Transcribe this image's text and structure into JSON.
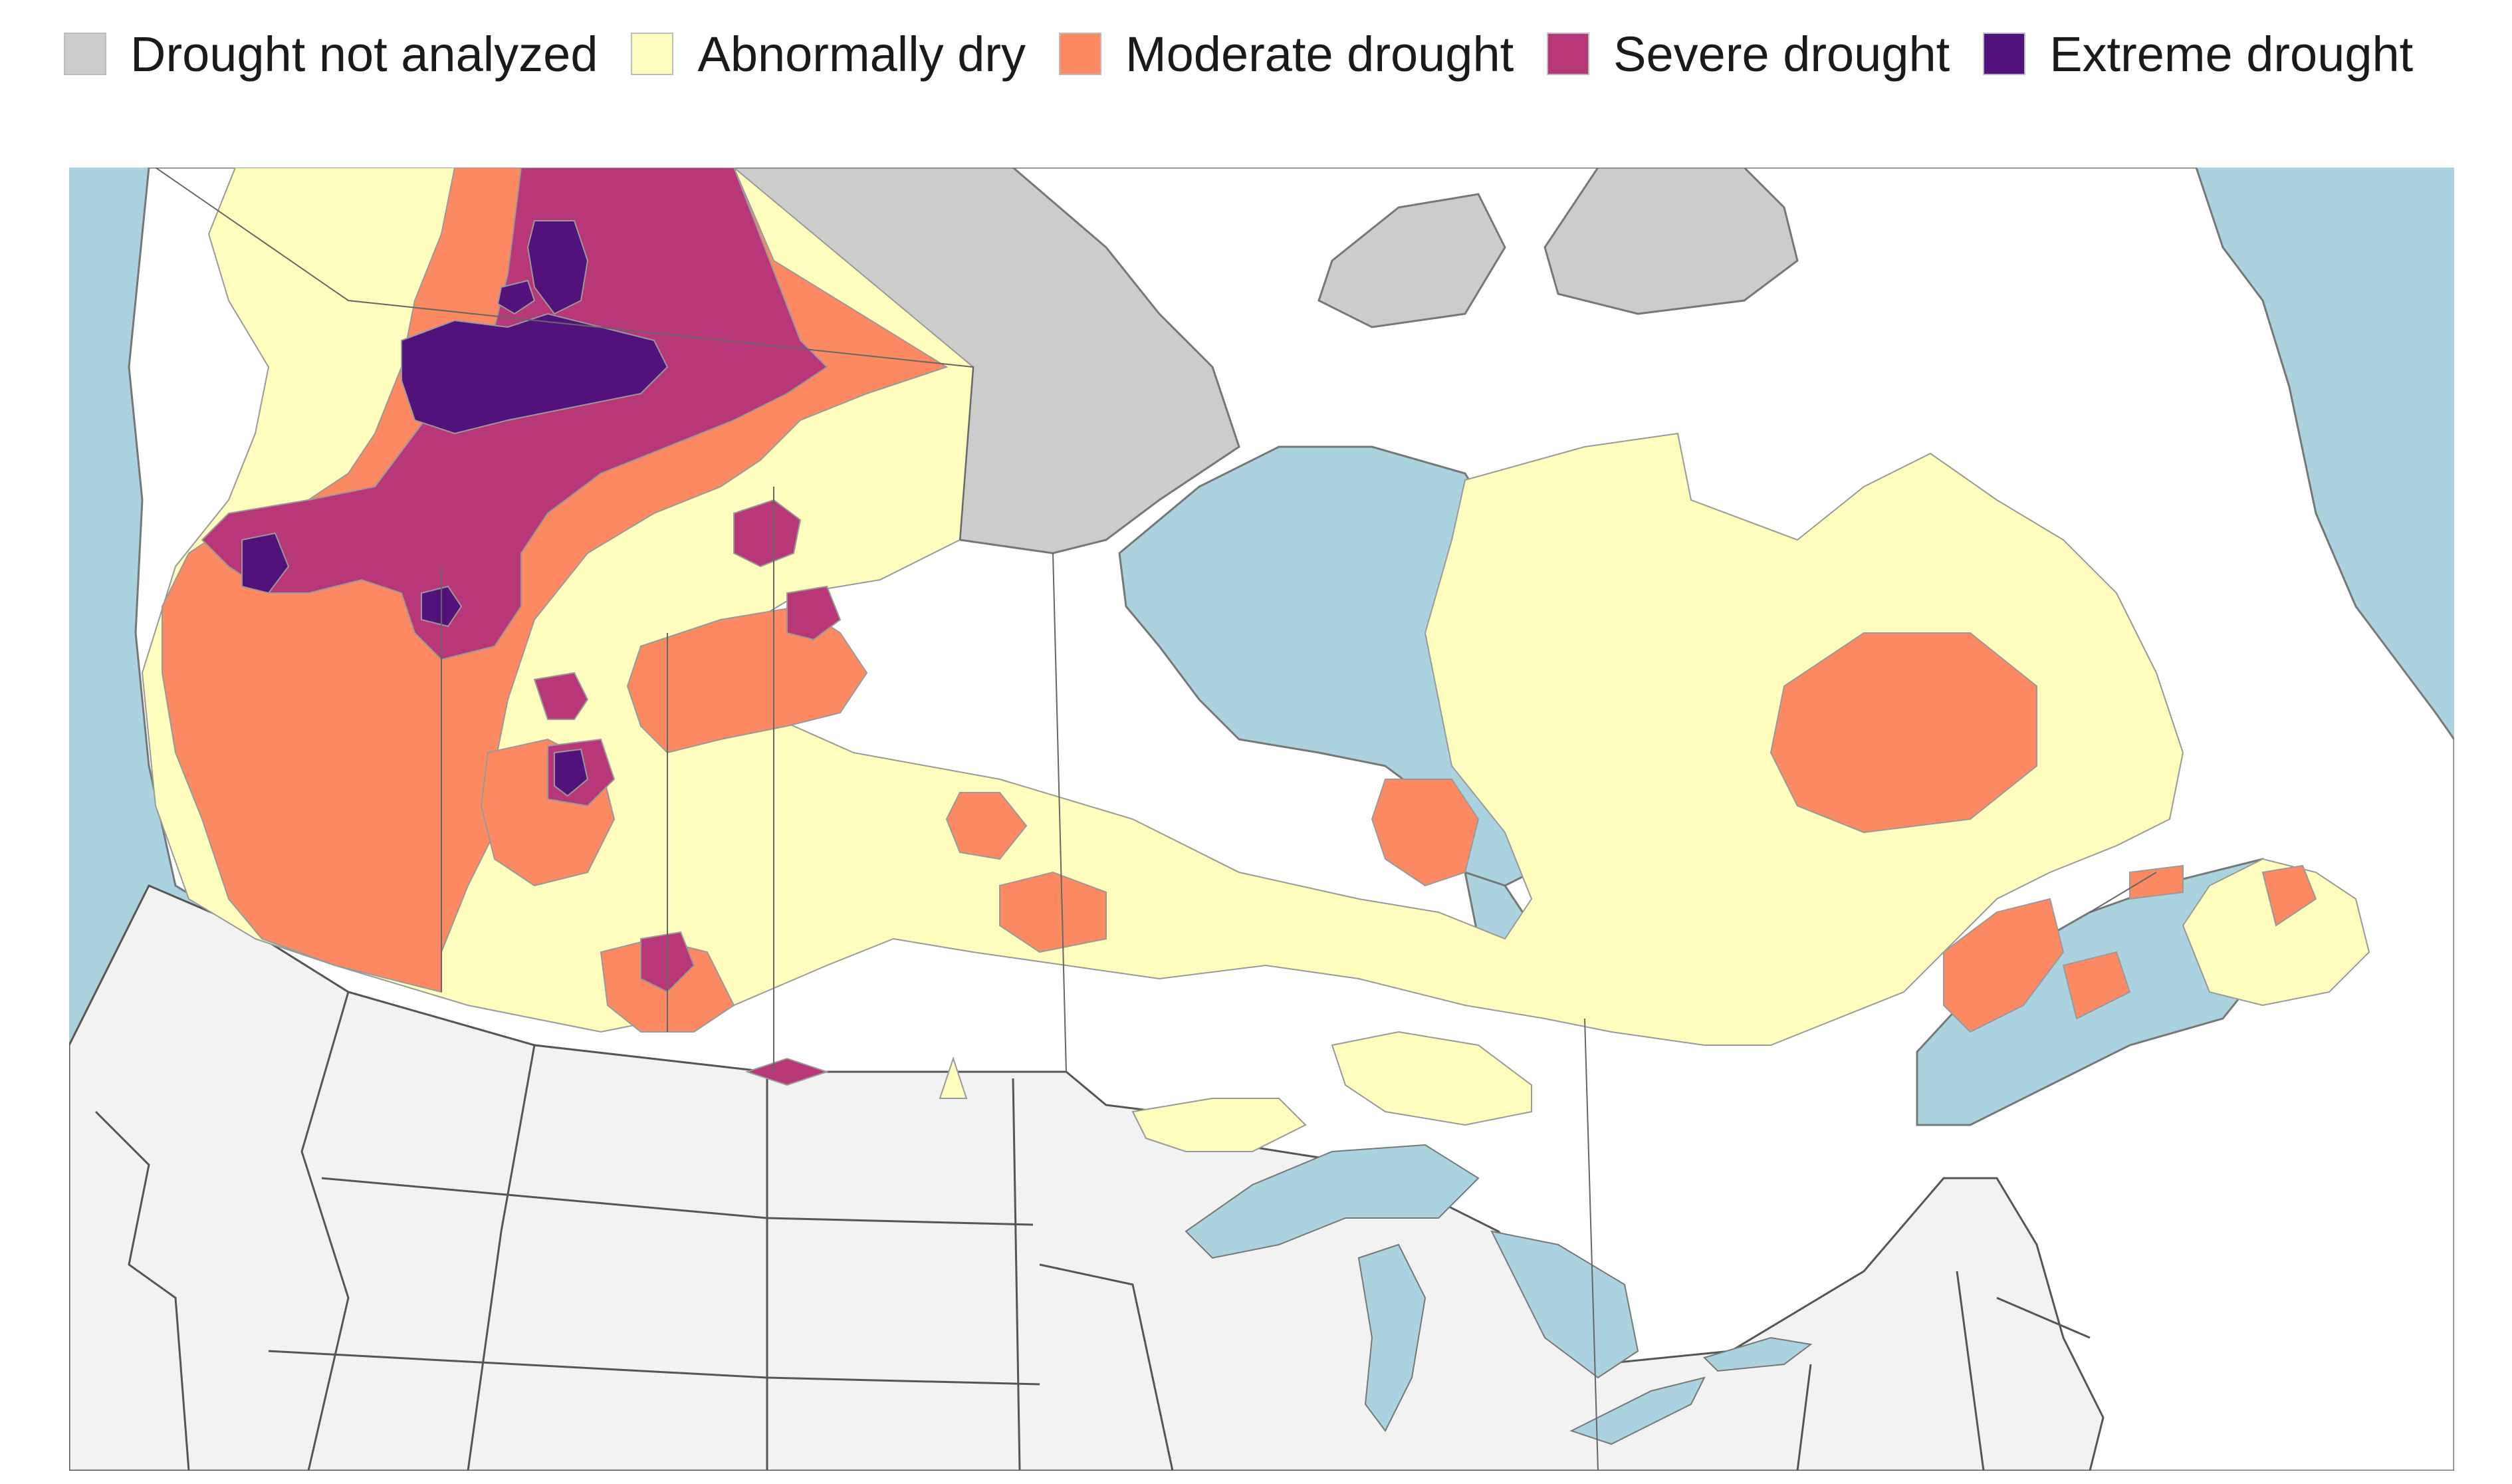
{
  "legend": {
    "items": [
      {
        "label": "Drought not analyzed",
        "color": "#cccccc"
      },
      {
        "label": "Abnormally dry",
        "color": "#fefdbe"
      },
      {
        "label": "Moderate drought",
        "color": "#fc8961"
      },
      {
        "label": "Severe drought",
        "color": "#b73779"
      },
      {
        "label": "Extreme drought",
        "color": "#51127c"
      }
    ]
  },
  "map": {
    "water_color": "#aad3df",
    "land_color": "#ffffff",
    "us_land_color": "#f2f2f2",
    "border_color": "#555555"
  }
}
